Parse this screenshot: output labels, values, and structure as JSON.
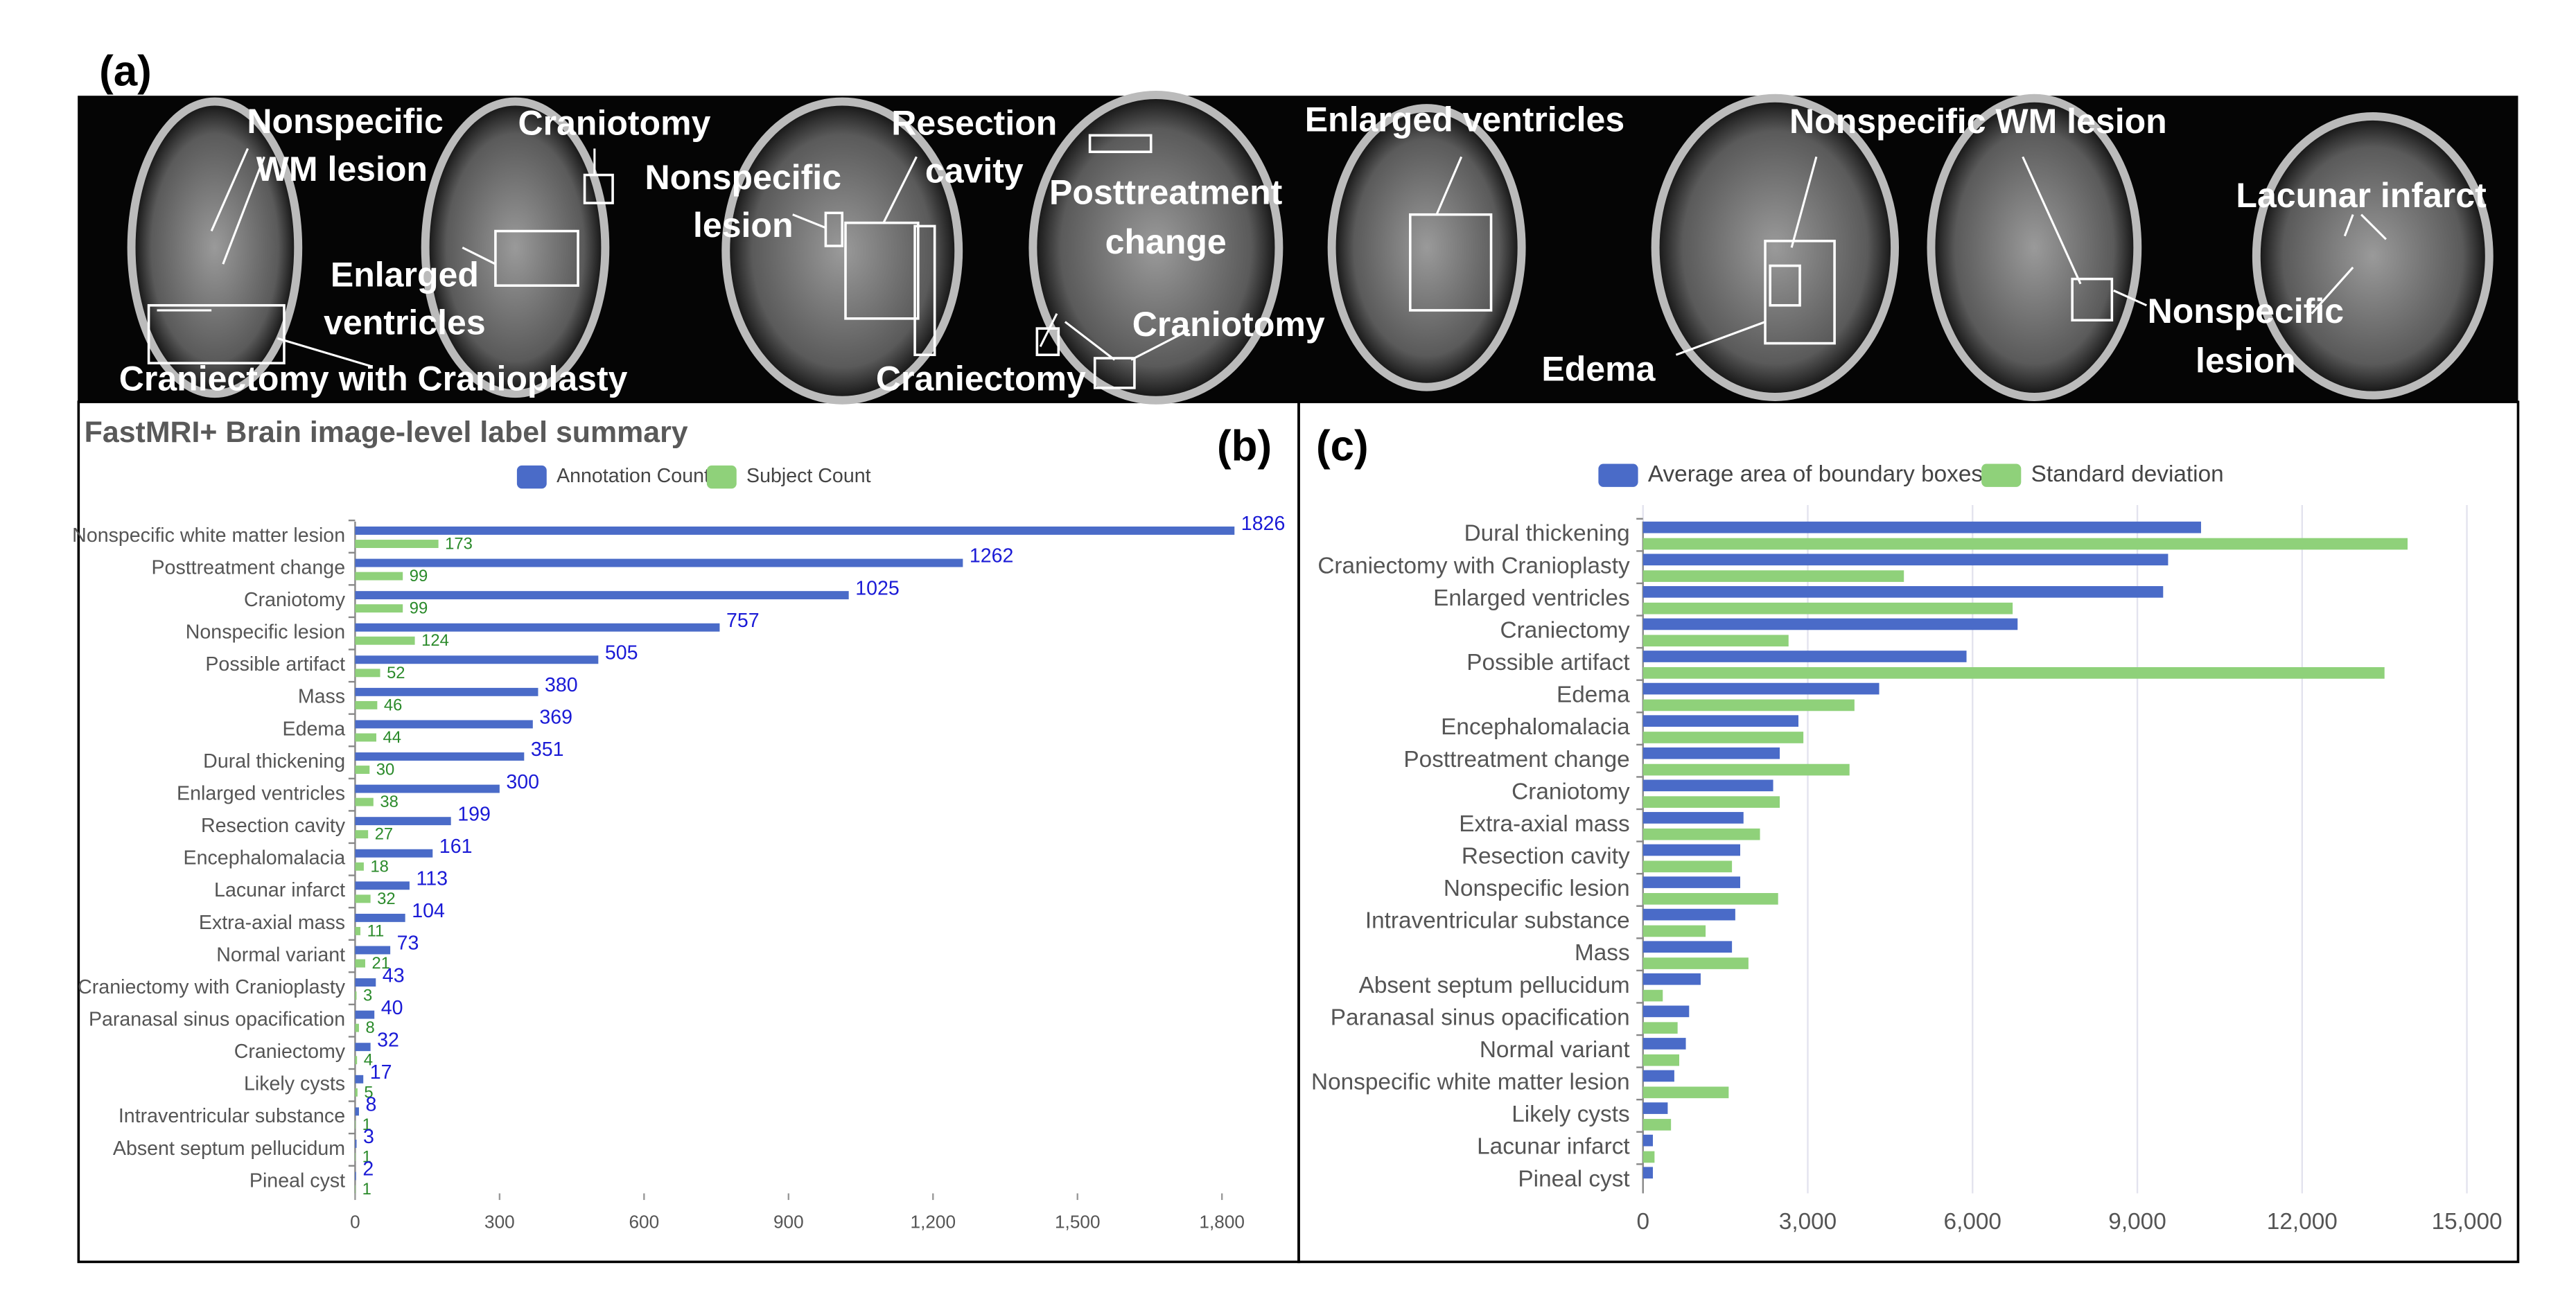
{
  "figure": {
    "panel_labels": [
      "(a)",
      "(b)",
      "(c)"
    ],
    "annotations": [
      "Nonspecific",
      "WM lesion",
      "Craniotomy",
      "Enlarged",
      "ventricles",
      "Craniectomy with Cranioplasty",
      "Nonspecific",
      "lesion",
      "Resection",
      "cavity",
      "Posttreatment",
      "change",
      "Craniotomy",
      "Craniectomy",
      "Enlarged ventricles",
      "Nonspecific WM lesion",
      "Edema",
      "Lacunar infarct",
      "Nonspecific",
      "lesion"
    ]
  },
  "chart_data": [
    {
      "type": "bar",
      "orientation": "horizontal",
      "title": "FastMRI+ Brain image-level label summary",
      "categories": [
        "Nonspecific white matter lesion",
        "Posttreatment change",
        "Craniotomy",
        "Nonspecific lesion",
        "Possible artifact",
        "Mass",
        "Edema",
        "Dural thickening",
        "Enlarged ventricles",
        "Resection cavity",
        "Encephalomalacia",
        "Lacunar infarct",
        "Extra-axial mass",
        "Normal variant",
        "Craniectomy with Cranioplasty",
        "Paranasal sinus opacification",
        "Craniectomy",
        "Likely cysts",
        "Intraventricular substance",
        "Absent septum pellucidum",
        "Pineal cyst"
      ],
      "series": [
        {
          "name": "Annotation Count",
          "color": "#4a6bc8",
          "label_color": "#1a1ad6",
          "values": [
            1826,
            1262,
            1025,
            757,
            505,
            380,
            369,
            351,
            300,
            199,
            161,
            113,
            104,
            73,
            43,
            40,
            32,
            17,
            8,
            3,
            2
          ]
        },
        {
          "name": "Subject Count",
          "color": "#8fd17a",
          "label_color": "#2a8a2a",
          "values": [
            173,
            99,
            99,
            124,
            52,
            46,
            44,
            30,
            38,
            27,
            18,
            32,
            11,
            21,
            3,
            8,
            4,
            5,
            1,
            1,
            1
          ]
        }
      ],
      "xlim": [
        0,
        1900
      ],
      "xticks": [
        0,
        300,
        600,
        900,
        {
          "value": 1200,
          "label": "1,200"
        },
        {
          "value": 1500,
          "label": "1,500"
        },
        {
          "value": 1800,
          "label": "1,800"
        }
      ],
      "grid": false,
      "data_labels": true
    },
    {
      "type": "bar",
      "orientation": "horizontal",
      "categories": [
        "Dural thickening",
        "Craniectomy with Cranioplasty",
        "Enlarged ventricles",
        "Craniectomy",
        "Possible artifact",
        "Edema",
        "Encephalomalacia",
        "Posttreatment change",
        "Craniotomy",
        "Extra-axial mass",
        "Resection cavity",
        "Nonspecific lesion",
        "Intraventricular substance",
        "Mass",
        "Absent septum pellucidum",
        "Paranasal sinus opacification",
        "Normal variant",
        "Nonspecific white matter lesion",
        "Likely cysts",
        "Lacunar infarct",
        "Pineal cyst"
      ],
      "series": [
        {
          "name": "Average area of boundary boxes",
          "color": "#4a6bc8",
          "values": [
            10160,
            9560,
            9470,
            6820,
            5890,
            4300,
            2830,
            2490,
            2370,
            1830,
            1770,
            1770,
            1680,
            1620,
            1050,
            840,
            780,
            570,
            450,
            180,
            180
          ]
        },
        {
          "name": "Standard deviation",
          "color": "#8fd17a",
          "values": [
            13920,
            4750,
            6730,
            2650,
            13500,
            3850,
            2920,
            3760,
            2490,
            2130,
            1620,
            2460,
            1140,
            1920,
            360,
            630,
            660,
            1560,
            510,
            210,
            0
          ]
        }
      ],
      "xlim": [
        0,
        15000
      ],
      "xticks": [
        0,
        {
          "value": 3000,
          "label": "3,000"
        },
        {
          "value": 6000,
          "label": "6,000"
        },
        {
          "value": 9000,
          "label": "9,000"
        },
        {
          "value": 12000,
          "label": "12,000"
        },
        {
          "value": 15000,
          "label": "15,000"
        }
      ],
      "grid": true,
      "data_labels": false
    }
  ]
}
